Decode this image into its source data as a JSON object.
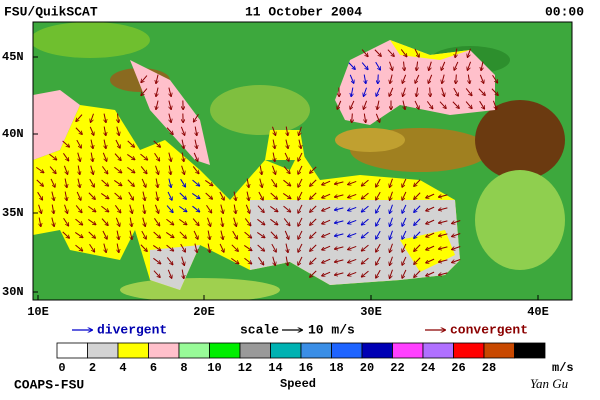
{
  "header": {
    "title": "FSU/QuikSCAT",
    "date": "11 October 2004",
    "time": "00:00"
  },
  "map": {
    "lat_labels": [
      "45N",
      "40N",
      "35N",
      "30N"
    ],
    "lon_labels": [
      "10E",
      "20E",
      "30E",
      "40E"
    ]
  },
  "legend": {
    "divergent": "divergent",
    "scale": "scale",
    "scale_value": "10 m/s",
    "convergent": "convergent"
  },
  "colorbar": {
    "ticks": [
      0,
      2,
      4,
      6,
      8,
      10,
      12,
      14,
      16,
      18,
      20,
      22,
      24,
      26,
      28
    ],
    "unit": "m/s",
    "title": "Speed",
    "colors": [
      "#ffffff",
      "#d3d3d3",
      "#ffff00",
      "#ffc0cb",
      "#98fb98",
      "#00ee00",
      "#999999",
      "#00b2b2",
      "#3a8ee6",
      "#1e64ff",
      "#0000b4",
      "#ff40ff",
      "#b070ff",
      "#ff0000",
      "#c84800",
      "#000000"
    ]
  },
  "footer": {
    "left": "COAPS-FSU",
    "right": "Yan Gu"
  }
}
